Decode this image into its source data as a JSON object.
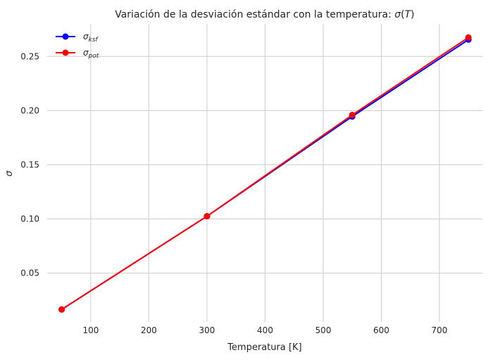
{
  "chart_data": {
    "type": "line",
    "title_text": "Variación de la desviación estándar con la temperatura: ",
    "title_math_sigma": "σ",
    "title_math_open": "(",
    "title_math_T": "T",
    "title_math_close": ")",
    "xlabel": "Temperatura [K]",
    "ylabel": "σ",
    "xlim": [
      25,
      775
    ],
    "ylim": [
      0.005,
      0.28
    ],
    "xticks": [
      100,
      200,
      300,
      400,
      500,
      600,
      700
    ],
    "yticks": [
      0.05,
      0.1,
      0.15,
      0.2,
      0.25
    ],
    "xtick_labels": [
      "100",
      "200",
      "300",
      "400",
      "500",
      "600",
      "700"
    ],
    "ytick_labels": [
      "0.05",
      "0.10",
      "0.15",
      "0.20",
      "0.25"
    ],
    "grid": true,
    "legend_position": "top-left",
    "x": [
      50,
      300,
      550,
      750
    ],
    "series": [
      {
        "name": "σ_ksf",
        "base": "σ",
        "sub": "ksf",
        "color": "#0000ff",
        "values": [
          0.0165,
          0.1025,
          0.1945,
          0.2655
        ]
      },
      {
        "name": "σ_pot",
        "base": "σ",
        "sub": "pot",
        "color": "#ff0000",
        "values": [
          0.0165,
          0.1025,
          0.196,
          0.2675
        ]
      }
    ]
  }
}
